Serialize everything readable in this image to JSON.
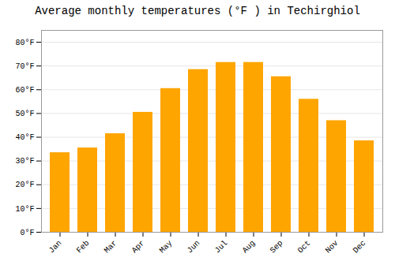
{
  "chart_data": {
    "type": "bar",
    "title": "Average monthly temperatures (°F ) in Techirghiol",
    "categories": [
      "Jan",
      "Feb",
      "Mar",
      "Apr",
      "May",
      "Jun",
      "Jul",
      "Aug",
      "Sep",
      "Oct",
      "Nov",
      "Dec"
    ],
    "values": [
      33.5,
      35.5,
      41.5,
      50.5,
      60.5,
      68.5,
      71.5,
      71.5,
      65.5,
      56.0,
      47.0,
      38.5
    ],
    "color": "#FFA500",
    "ylim": [
      0,
      85
    ],
    "yticks": [
      {
        "value": 0,
        "label": "0°F"
      },
      {
        "value": 10,
        "label": "10°F"
      },
      {
        "value": 20,
        "label": "20°F"
      },
      {
        "value": 30,
        "label": "30°F"
      },
      {
        "value": 40,
        "label": "40°F"
      },
      {
        "value": 50,
        "label": "50°F"
      },
      {
        "value": 60,
        "label": "60°F"
      },
      {
        "value": 70,
        "label": "70°F"
      },
      {
        "value": 80,
        "label": "80°F"
      }
    ],
    "grid": true
  }
}
